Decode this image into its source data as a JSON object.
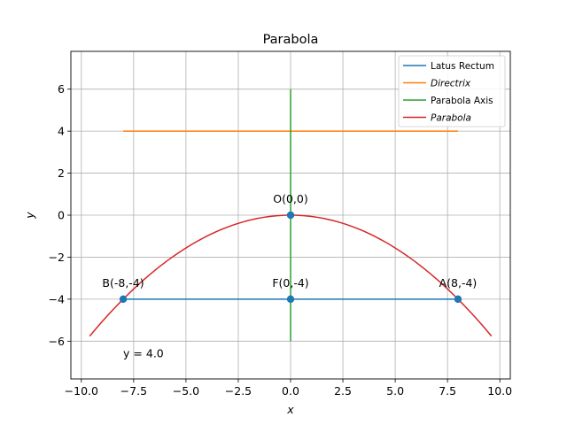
{
  "chart_data": {
    "type": "line",
    "title": "Parabola",
    "xlabel": "x",
    "ylabel": "y",
    "xlim": [
      -10.5,
      10.5
    ],
    "ylim": [
      -7.8,
      7.8
    ],
    "grid": true,
    "legend_position": "top-right",
    "x_ticks": [
      -10.0,
      -7.5,
      -5.0,
      -2.5,
      0.0,
      2.5,
      5.0,
      7.5,
      10.0
    ],
    "x_tick_labels": [
      "−10.0",
      "−7.5",
      "−5.0",
      "−2.5",
      "0.0",
      "2.5",
      "5.0",
      "7.5",
      "10.0"
    ],
    "y_ticks": [
      -6,
      -4,
      -2,
      0,
      2,
      4,
      6
    ],
    "y_tick_labels": [
      "−6",
      "−4",
      "−2",
      "0",
      "2",
      "4",
      "6"
    ],
    "series": [
      {
        "name": "Latus Rectum",
        "color": "#1f77b4",
        "italic": false,
        "points": [
          [
            -8,
            -4
          ],
          [
            8,
            -4
          ]
        ]
      },
      {
        "name": "Directrix",
        "color": "#ff7f0e",
        "italic": true,
        "points": [
          [
            -8,
            4
          ],
          [
            8,
            4
          ]
        ]
      },
      {
        "name": "Parabola Axis",
        "color": "#2ca02c",
        "italic": false,
        "points": [
          [
            0,
            6
          ],
          [
            0,
            -6
          ]
        ]
      },
      {
        "name": "Parabola",
        "color": "#d62728",
        "italic": true,
        "equation": "y = -x^2/16",
        "x_range": [
          -9.6,
          9.6
        ]
      }
    ],
    "scatter_points": [
      {
        "label": "O(0,0)",
        "x": 0,
        "y": 0,
        "color": "#1f77b4"
      },
      {
        "label": "F(0,-4)",
        "x": 0,
        "y": -4,
        "color": "#1f77b4"
      },
      {
        "label": "B(-8,-4)",
        "x": -8,
        "y": -4,
        "color": "#1f77b4"
      },
      {
        "label": "A(8,-4)",
        "x": 8,
        "y": -4,
        "color": "#1f77b4"
      }
    ],
    "annotations": [
      {
        "text": "y = 4.0",
        "x": -8,
        "y": -6.6
      }
    ]
  }
}
